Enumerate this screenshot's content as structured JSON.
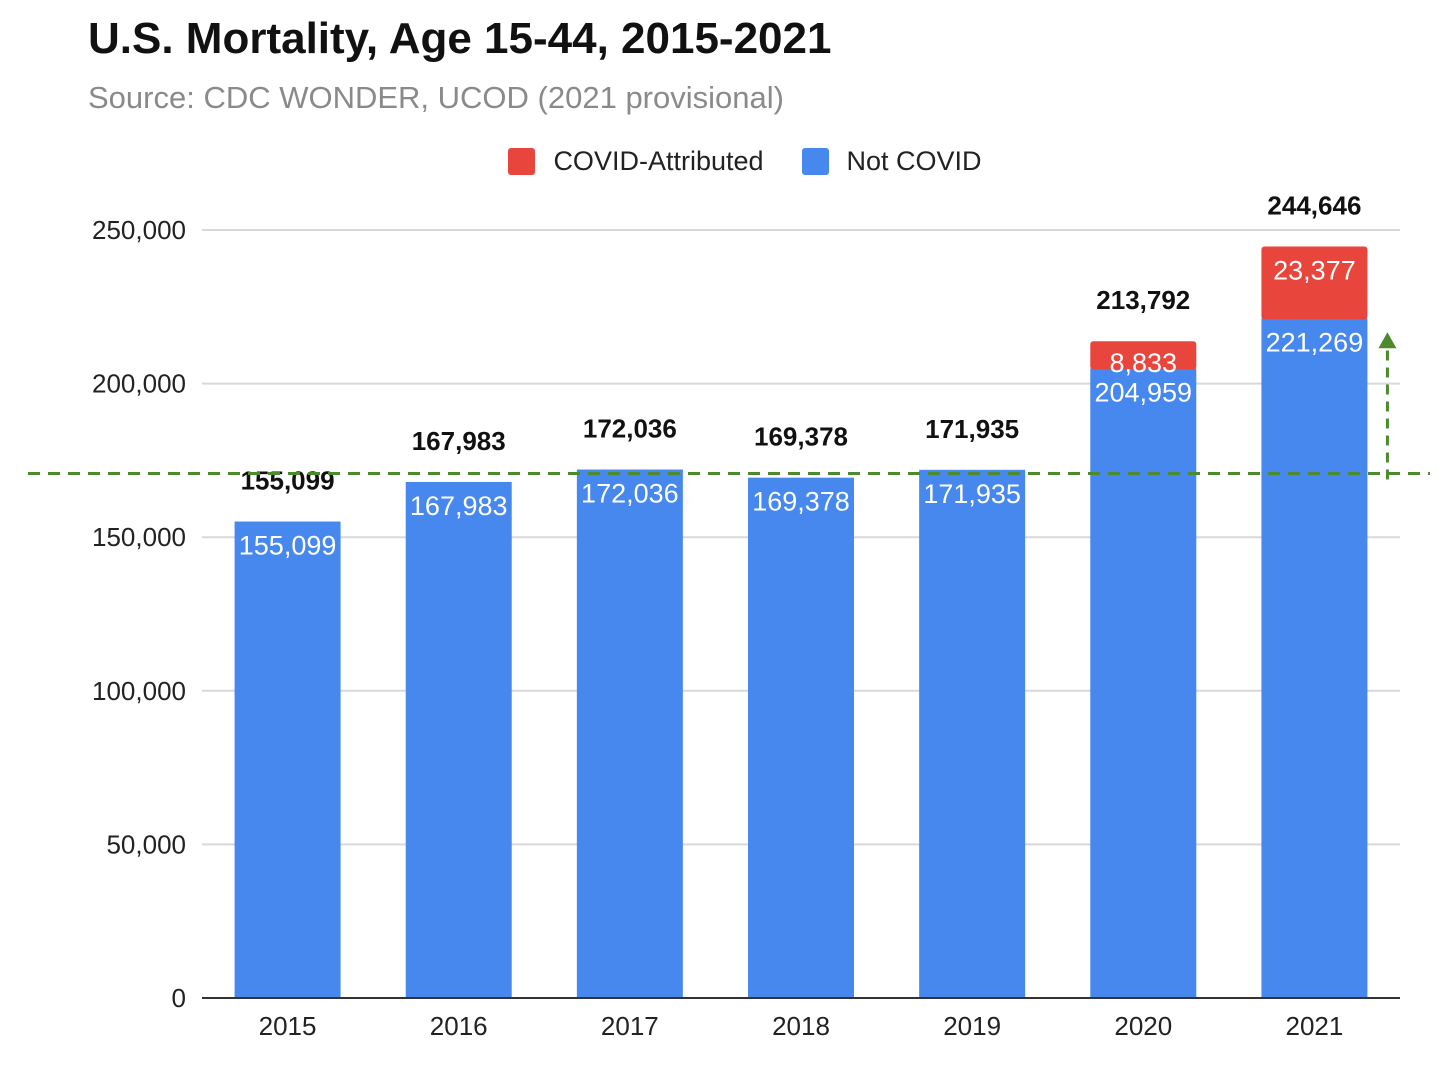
{
  "colors": {
    "covid": "#e8453c",
    "not_covid": "#4788ee",
    "grid": "#d9d9d9",
    "axis": "#333333",
    "annotation": "#4d8a2e"
  },
  "chart_data": {
    "type": "bar",
    "stacked": true,
    "title": "U.S. Mortality, Age 15-44, 2015-2021",
    "subtitle": "Source: CDC WONDER, UCOD (2021 provisional)",
    "xlabel": "",
    "ylabel": "",
    "categories": [
      "2015",
      "2016",
      "2017",
      "2018",
      "2019",
      "2020",
      "2021"
    ],
    "series": [
      {
        "name": "Not COVID",
        "values": [
          155099,
          167983,
          172036,
          169378,
          171935,
          204959,
          221269
        ],
        "labels": [
          "155,099",
          "167,983",
          "172,036",
          "169,378",
          "171,935",
          "204,959",
          "221,269"
        ]
      },
      {
        "name": "COVID-Attributed",
        "values": [
          0,
          0,
          0,
          0,
          0,
          8833,
          23377
        ],
        "labels": [
          "",
          "",
          "",
          "",
          "",
          "8,833",
          "23,377"
        ]
      }
    ],
    "totals": [
      155099,
      167983,
      172036,
      169378,
      171935,
      213792,
      244646
    ],
    "total_labels": [
      "155,099",
      "167,983",
      "172,036",
      "169,378",
      "171,935",
      "213,792",
      "244,646"
    ],
    "ylim": [
      0,
      250000
    ],
    "yticks": [
      0,
      50000,
      100000,
      150000,
      200000,
      250000
    ],
    "ytick_labels": [
      "0",
      "50,000",
      "100,000",
      "150,000",
      "200,000",
      "250,000"
    ],
    "grid": true,
    "legend": {
      "position": "top",
      "order": [
        "COVID-Attributed",
        "Not COVID"
      ]
    },
    "annotations": [
      {
        "type": "dashed-hline",
        "y": 172036
      },
      {
        "type": "dashed-arrow",
        "x": "2021",
        "from": 172036,
        "to": 221269
      }
    ]
  }
}
